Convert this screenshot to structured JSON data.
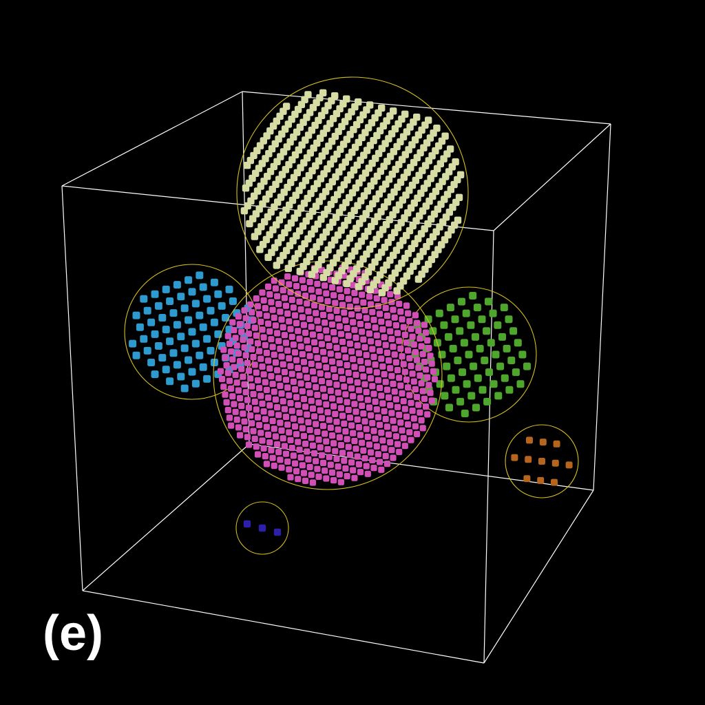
{
  "panel_label": "(e)",
  "colors": {
    "background": "#000000",
    "box_edges": "#ffffff",
    "cluster_outline": "#d9c21e"
  },
  "clusters": [
    {
      "name": "cluster-light-yellow",
      "color": "#d6dca4",
      "size_rank": 2
    },
    {
      "name": "cluster-magenta",
      "color": "#d24fb7",
      "size_rank": 1
    },
    {
      "name": "cluster-blue",
      "color": "#2e9bd0",
      "size_rank": 4
    },
    {
      "name": "cluster-green",
      "color": "#4fa62c",
      "size_rank": 3
    },
    {
      "name": "cluster-orange",
      "color": "#b5651d",
      "size_rank": 5
    },
    {
      "name": "cluster-dark-blue",
      "color": "#2c20a8",
      "size_rank": 6
    }
  ]
}
